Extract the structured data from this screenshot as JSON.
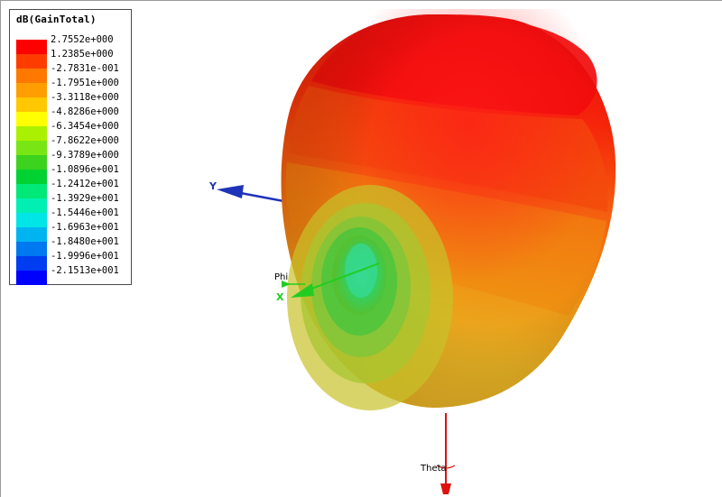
{
  "legend": {
    "title": "dB(GainTotal)",
    "entries": [
      {
        "value": "2.7552e+000",
        "color": "#ff0000"
      },
      {
        "value": "1.2385e+000",
        "color": "#ff3c00"
      },
      {
        "value": "-2.7831e-001",
        "color": "#ff7800"
      },
      {
        "value": "-1.7951e+000",
        "color": "#ff9e00"
      },
      {
        "value": "-3.3118e+000",
        "color": "#ffc800"
      },
      {
        "value": "-4.8286e+000",
        "color": "#ffff00"
      },
      {
        "value": "-6.3454e+000",
        "color": "#aaf000"
      },
      {
        "value": "-7.8622e+000",
        "color": "#78e614"
      },
      {
        "value": "-9.3789e+000",
        "color": "#3cd21e"
      },
      {
        "value": "-1.0896e+001",
        "color": "#00d232"
      },
      {
        "value": "-1.2412e+001",
        "color": "#00e878"
      },
      {
        "value": "-1.3929e+001",
        "color": "#00f0b4"
      },
      {
        "value": "-1.5446e+001",
        "color": "#00e6e6"
      },
      {
        "value": "-1.6963e+001",
        "color": "#00b4f0"
      },
      {
        "value": "-1.8480e+001",
        "color": "#0078f0"
      },
      {
        "value": "-1.9996e+001",
        "color": "#003cf0"
      },
      {
        "value": "-2.1513e+001",
        "color": "#0000ff"
      }
    ]
  },
  "axes": {
    "x_label": "X",
    "y_label": "Y",
    "phi_label": "Phi",
    "theta_label": "Theta",
    "x_color": "#22cc22",
    "y_color": "#1f33b8",
    "theta_color": "#dd1111"
  }
}
